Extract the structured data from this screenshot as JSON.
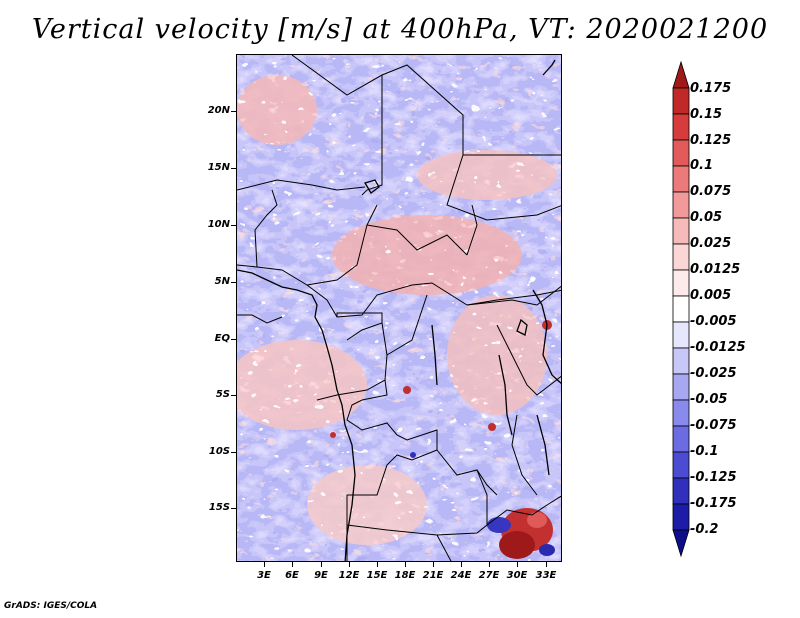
{
  "title": "Vertical velocity [m/s] at 400hPa, VT: 2020021200",
  "credit": "GrADS: IGES/COLA",
  "map": {
    "lat_labels": [
      "20N",
      "15N",
      "10N",
      "5N",
      "EQ",
      "5S",
      "10S",
      "15S"
    ],
    "lon_labels": [
      "3E",
      "6E",
      "9E",
      "12E",
      "15E",
      "18E",
      "21E",
      "24E",
      "27E",
      "30E",
      "33E"
    ]
  },
  "colorbar": {
    "levels": [
      "0.175",
      "0.15",
      "0.125",
      "0.1",
      "0.075",
      "0.05",
      "0.025",
      "0.0125",
      "0.005",
      "-0.005",
      "-0.0125",
      "-0.025",
      "-0.05",
      "-0.075",
      "-0.1",
      "-0.125",
      "-0.175",
      "-0.2"
    ],
    "colors": [
      "#a01818",
      "#c12828",
      "#d63c3c",
      "#e25a5a",
      "#ec7a7a",
      "#f29a9a",
      "#f7baba",
      "#fbd6d6",
      "#fdeaea",
      "#ffffff",
      "#e6e6fc",
      "#c8c8f8",
      "#a8a8f2",
      "#8a8aec",
      "#6b6be2",
      "#4c4cd2",
      "#3030bc",
      "#1c1ca6",
      "#0e0e8a"
    ]
  }
}
